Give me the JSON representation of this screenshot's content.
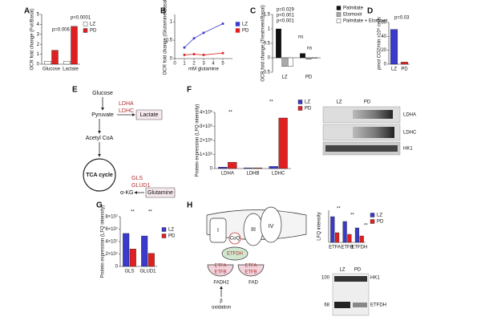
{
  "panels": {
    "A": {
      "label": "A",
      "chart": {
        "type": "bar",
        "ylabel": "OCR fold change (Fut/Basal)",
        "categories": [
          "Glucose",
          "Lactate"
        ],
        "outline": "#222222",
        "series": [
          {
            "name": "LZ",
            "color": "#ffffff",
            "values": [
              0.3,
              0.3
            ]
          },
          {
            "name": "PD",
            "color": "#e02020",
            "values": [
              1.4,
              3.8
            ]
          }
        ],
        "ylim": [
          0,
          5
        ],
        "yticks": [
          0,
          1,
          2,
          3,
          4,
          5
        ],
        "annotations": [
          "p=0.006",
          "p<0.0001"
        ]
      }
    },
    "B": {
      "label": "B",
      "chart": {
        "type": "line",
        "ylabel": "OCR fold change (Glutamine/Basal)",
        "xlabel": "mM glutamine",
        "x": [
          1,
          2,
          3,
          5
        ],
        "series": [
          {
            "name": "LZ",
            "color": "#3a3acc",
            "values": [
              0.3,
              0.55,
              0.7,
              0.95
            ]
          },
          {
            "name": "PD",
            "color": "#e02020",
            "values": [
              0.1,
              0.12,
              0.1,
              0.15
            ]
          }
        ],
        "xlim": [
          0,
          6
        ],
        "xticks": [
          0,
          1,
          2,
          3,
          4,
          5
        ],
        "ylim": [
          0,
          1.2
        ],
        "yticks": [
          0,
          0.5,
          1
        ]
      }
    },
    "C": {
      "label": "C",
      "chart": {
        "type": "bar",
        "ylabel": "OCR fold change (Treatment/Basal)",
        "categories": [
          "LZ",
          "PD"
        ],
        "outline": "#222222",
        "series": [
          {
            "name": "Palmitate",
            "color": "#111111",
            "values": [
              1.0,
              0.15
            ]
          },
          {
            "name": "Etomoxir",
            "color": "#aaaaaa",
            "values": [
              -0.3,
              -0.05
            ]
          },
          {
            "name": "Palmitate + Etomoxir",
            "color": "#ffffff",
            "values": [
              -0.3,
              -0.02
            ]
          }
        ],
        "ylim": [
          -0.5,
          1.5
        ],
        "yticks": [
          -0.5,
          0,
          0.5,
          1,
          1.5
        ],
        "annotations": [
          "p=0.029",
          "p<0.001",
          "p<0.001",
          "ns",
          "ns"
        ]
      }
    },
    "D": {
      "label": "D",
      "chart": {
        "type": "bar",
        "ylabel": "pmol CO2/min x10⁶ cells",
        "categories": [
          "LZ",
          "PD"
        ],
        "values": [
          50,
          3
        ],
        "colors": [
          "#3a3acc",
          "#e02020"
        ],
        "outline": "#222222",
        "ylim": [
          0,
          60
        ],
        "yticks": [
          0,
          20,
          40,
          60
        ],
        "annotations": [
          "p=0.03"
        ]
      }
    },
    "E": {
      "label": "E",
      "nodes": [
        "Glucose",
        "Pyruvate",
        "Acetyl CoA",
        "TCA cycle",
        "α-KG"
      ],
      "enzymes": [
        "LDHA",
        "LDHC",
        "GLS",
        "GLUD1"
      ],
      "boxes": [
        "Lactate",
        "Glutamine"
      ]
    },
    "F": {
      "label": "F",
      "chart": {
        "type": "bar",
        "ylabel": "Protein expression (LFQ intensity)",
        "categories": [
          "LDHA",
          "LDHB",
          "LDHC"
        ],
        "outline": "#222222",
        "series": [
          {
            "name": "LZ",
            "color": "#3a3acc",
            "values": [
              100000,
              50000,
              150000
            ]
          },
          {
            "name": "PD",
            "color": "#e02020",
            "values": [
              450000,
              50000,
              3600000
            ]
          }
        ],
        "ylim": [
          0,
          4000000
        ],
        "yticks": [
          0,
          {
            "value": 1000000,
            "label": "1×10⁶"
          },
          {
            "value": 2000000,
            "label": "2×10⁶"
          },
          {
            "value": 3000000,
            "label": "3×10⁶"
          },
          {
            "value": 4000000,
            "label": "4×10⁶"
          }
        ],
        "annotations": [
          "**",
          "**"
        ]
      },
      "blot": {
        "columns": [
          "LZ",
          "PD"
        ],
        "rows": [
          "LDHA",
          "LDHC",
          "HK1"
        ]
      }
    },
    "G": {
      "label": "G",
      "chart": {
        "type": "bar",
        "ylabel": "Protein expression (LFQ intensity)",
        "categories": [
          "GLS",
          "GLUD1"
        ],
        "outline": "#222222",
        "series": [
          {
            "name": "LZ",
            "color": "#3a3acc",
            "values": [
              53000000,
              49000000
            ]
          },
          {
            "name": "PD",
            "color": "#e02020",
            "values": [
              28000000,
              21000000
            ]
          }
        ],
        "ylim": [
          0,
          80000000
        ],
        "yticks": [
          0,
          {
            "value": 20000000,
            "label": "2×10⁷"
          },
          {
            "value": 40000000,
            "label": "4×10⁷"
          },
          {
            "value": 60000000,
            "label": "6×10⁷"
          },
          {
            "value": 80000000,
            "label": "8×10⁷"
          }
        ],
        "annotations": [
          "**",
          "**"
        ]
      }
    },
    "H": {
      "label": "H",
      "complexes": [
        "I",
        "III",
        "IV"
      ],
      "labels": [
        "CoQ",
        "ETFDH",
        "ETFA",
        "ETFB",
        "ETFA",
        "ETFB",
        "FADH2",
        "FAD",
        "β",
        "oxidation"
      ],
      "chart": {
        "type": "bar",
        "ylabel": "LFQ intensity",
        "categories": [
          "ETFA",
          "ETFB",
          "ETFDH"
        ],
        "outline": "#222222",
        "series": [
          {
            "name": "LZ",
            "color": "#3a3acc",
            "values": [
              0.8,
              0.65,
              0.45
            ]
          },
          {
            "name": "PD",
            "color": "#e02020",
            "values": [
              0.3,
              0.25,
              0.2
            ]
          }
        ],
        "ylim": [
          0,
          1
        ],
        "annotations": [
          "**",
          "**",
          "**"
        ]
      },
      "blot": {
        "columns": [
          "LZ",
          "PD"
        ],
        "markers": [
          "100",
          "68"
        ],
        "rows": [
          "HK1",
          "ETFDH"
        ]
      }
    }
  }
}
